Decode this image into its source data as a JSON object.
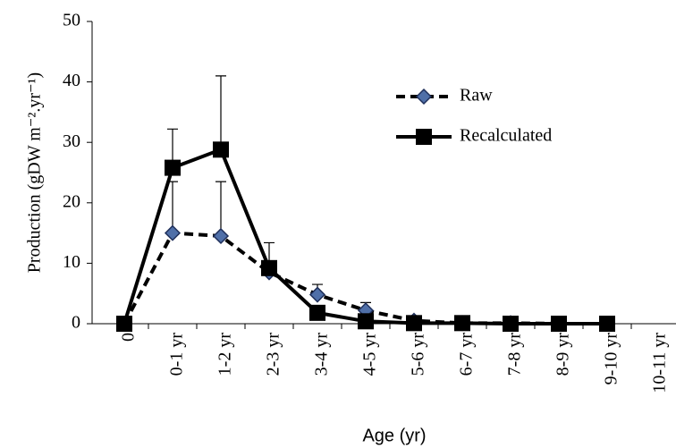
{
  "chart_data": {
    "type": "line",
    "ylabel": "Production (gDW m⁻².yr⁻¹)",
    "xlabel": "Age (yr)",
    "categories": [
      "0",
      "0-1 yr",
      "1-2 yr",
      "2-3 yr",
      "3-4 yr",
      "4-5 yr",
      "5-6 yr",
      "6-7 yr",
      "7-8 yr",
      "8-9 yr",
      "9-10 yr",
      "10-11 yr"
    ],
    "series": [
      {
        "name": "Raw",
        "color": "#000000",
        "marker": "diamond",
        "marker_color": "#4f6fa8",
        "dash": true,
        "values": [
          0,
          15,
          14.5,
          8.5,
          4.8,
          2.2,
          0.5,
          0.1,
          0.1,
          0,
          0,
          null
        ],
        "errors": [
          null,
          8.5,
          9,
          null,
          1.7,
          1.3,
          0.5,
          null,
          null,
          null,
          null,
          null
        ]
      },
      {
        "name": "Recalculated",
        "color": "#000000",
        "marker": "square",
        "marker_color": "#000000",
        "dash": false,
        "values": [
          0,
          25.8,
          28.8,
          9.2,
          1.8,
          0.4,
          0.1,
          0.1,
          0,
          0,
          0,
          null
        ],
        "errors": [
          null,
          6.4,
          12.2,
          4.2,
          null,
          null,
          null,
          null,
          null,
          null,
          null,
          null
        ]
      }
    ],
    "ylim": [
      0,
      50
    ],
    "yticks": [
      0,
      10,
      20,
      30,
      40,
      50
    ],
    "grid": false
  }
}
